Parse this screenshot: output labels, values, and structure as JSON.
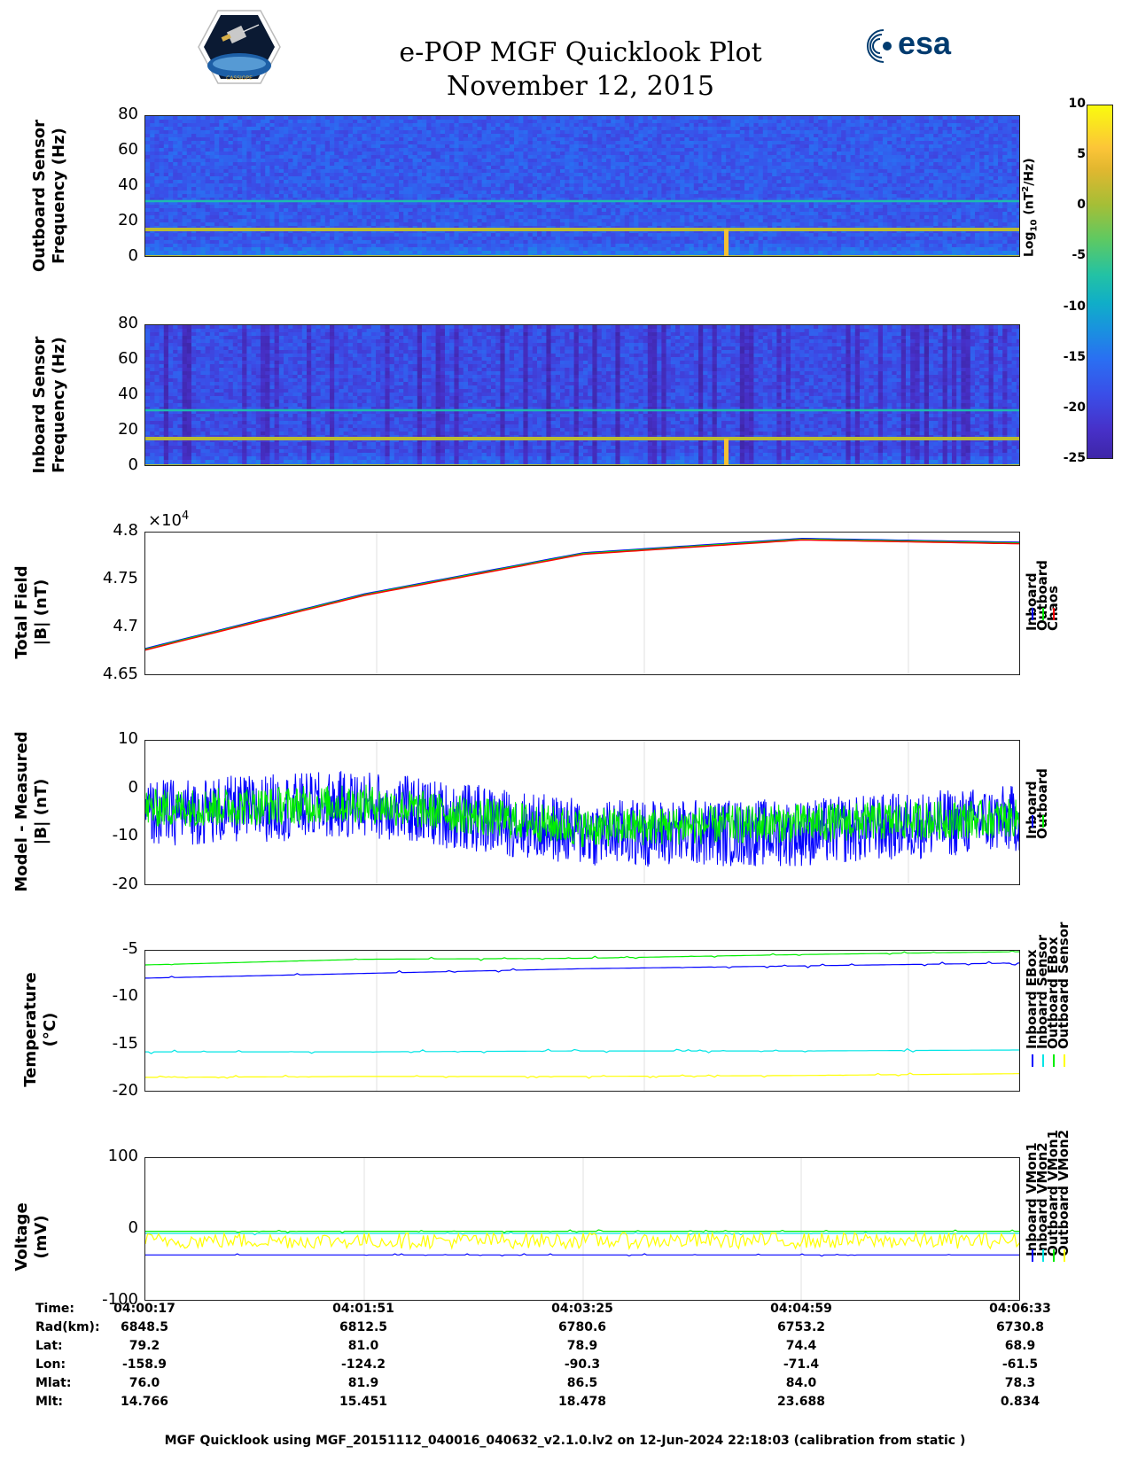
{
  "header": {
    "title": "e-POP MGF Quicklook Plot",
    "date": "November 12, 2015",
    "esa_logo_text": "esa",
    "mission_badge_text": "CASSIOPE"
  },
  "colors": {
    "blue": "#0000ff",
    "green": "#00ee00",
    "red": "#ff0000",
    "cyan": "#00e5e5",
    "yellow": "#ffff00"
  },
  "colorbar": {
    "label_main": "Log",
    "label_sub": "10",
    "label_rest": " (nT",
    "label_sup": "2",
    "label_end": "/Hz)",
    "ticks": [
      "10",
      "5",
      "0",
      "-5",
      "-10",
      "-15",
      "-20",
      "-25"
    ],
    "range": [
      -25,
      10
    ]
  },
  "panels": {
    "outboard": {
      "ylabel1": "Outboard Sensor",
      "ylabel2": "Frequency (Hz)",
      "ticks": [
        "80",
        "60",
        "40",
        "20",
        "0"
      ]
    },
    "inboard": {
      "ylabel1": "Inboard Sensor",
      "ylabel2": "Frequency (Hz)",
      "ticks": [
        "80",
        "60",
        "40",
        "20",
        "0"
      ]
    },
    "total_field": {
      "ylabel1": "Total Field",
      "ylabel2": "|B| (nT)",
      "exponent_base": "×10",
      "exponent": "4",
      "ticks": [
        "4.8",
        "4.75",
        "4.7",
        "4.65"
      ],
      "legend": [
        "Inboard",
        "Outboard",
        "Chaos"
      ]
    },
    "residual": {
      "ylabel1": "Model - Measured",
      "ylabel2": "|B| (nT)",
      "ticks": [
        "10",
        "0",
        "-10",
        "-20"
      ],
      "legend": [
        "Inboard",
        "Outboard"
      ]
    },
    "temperature": {
      "ylabel1": "Temperature",
      "ylabel2": "(°C)",
      "ticks": [
        "-5",
        "-10",
        "-15",
        "-20"
      ],
      "legend": [
        "Inboard EBox",
        "Inboard Sensor",
        "Outboard EBox",
        "Outboard Sensor"
      ]
    },
    "voltage": {
      "ylabel1": "Voltage",
      "ylabel2": "(mV)",
      "ticks": [
        "100",
        "0",
        "-100"
      ],
      "legend": [
        "Inboard VMon1",
        "Inboard VMon2",
        "Outboard VMon1",
        "Outboard VMon2"
      ]
    }
  },
  "table": {
    "labels": [
      "Time:",
      "Rad(km):",
      "Lat:",
      "Lon:",
      "Mlat:",
      "Mlt:"
    ],
    "columns": [
      [
        "04:00:17",
        "6848.5",
        "79.2",
        "-158.9",
        "76.0",
        "14.766"
      ],
      [
        "04:01:51",
        "6812.5",
        "81.0",
        "-124.2",
        "81.9",
        "15.451"
      ],
      [
        "04:03:25",
        "6780.6",
        "78.9",
        "-90.3",
        "86.5",
        "18.478"
      ],
      [
        "04:04:59",
        "6753.2",
        "74.4",
        "-71.4",
        "84.0",
        "23.688"
      ],
      [
        "04:06:33",
        "6730.8",
        "68.9",
        "-61.5",
        "78.3",
        "0.834"
      ]
    ]
  },
  "footer": "MGF Quicklook using MGF_20151112_040016_040632_v2.1.0.lv2 on 12-Jun-2024 22:18:03 (calibration from static )",
  "chart_data": [
    {
      "type": "heatmap",
      "title": "",
      "ylabel": "Outboard Sensor Frequency (Hz)",
      "ylim": [
        0,
        80
      ],
      "x_range": [
        "04:00:17",
        "04:06:33"
      ],
      "colorscale_range_log10": [
        -25,
        10
      ],
      "features": [
        {
          "frequency_hz": 0.5,
          "log10_power": 2
        },
        {
          "frequency_hz": 16,
          "log10_power": 2
        },
        {
          "frequency_hz": 32,
          "log10_power": -6
        }
      ],
      "background_log10_power": -16
    },
    {
      "type": "heatmap",
      "title": "",
      "ylabel": "Inboard Sensor Frequency (Hz)",
      "ylim": [
        0,
        80
      ],
      "x_range": [
        "04:00:17",
        "04:06:33"
      ],
      "colorscale_range_log10": [
        -25,
        10
      ],
      "features": [
        {
          "frequency_hz": 0.5,
          "log10_power": 2
        },
        {
          "frequency_hz": 16,
          "log10_power": 2
        },
        {
          "frequency_hz": 32,
          "log10_power": -6
        }
      ],
      "background_log10_power": -17
    },
    {
      "type": "line",
      "ylabel": "Total Field |B| (nT)",
      "ylim": [
        46500,
        48000
      ],
      "x": [
        "04:00:17",
        "04:01:51",
        "04:03:25",
        "04:04:59",
        "04:06:33"
      ],
      "series": [
        {
          "name": "Inboard",
          "values": [
            46780,
            47350,
            47780,
            47930,
            47890
          ]
        },
        {
          "name": "Outboard",
          "values": [
            46780,
            47350,
            47780,
            47930,
            47890
          ]
        },
        {
          "name": "Chaos",
          "values": [
            46780,
            47350,
            47780,
            47930,
            47890
          ]
        }
      ]
    },
    {
      "type": "line",
      "ylabel": "Model - Measured |B| (nT)",
      "ylim": [
        -20,
        10
      ],
      "x": [
        "04:00:17",
        "04:01:51",
        "04:03:25",
        "04:04:59",
        "04:06:33"
      ],
      "series": [
        {
          "name": "Inboard",
          "values": [
            -5,
            -3,
            -9,
            -9,
            -6
          ]
        },
        {
          "name": "Outboard",
          "values": [
            -4,
            -3,
            -8,
            -7,
            -6
          ]
        }
      ],
      "noise_amplitude": {
        "Inboard": 7,
        "Outboard": 4
      }
    },
    {
      "type": "line",
      "ylabel": "Temperature (°C)",
      "ylim": [
        -20,
        -5
      ],
      "x": [
        "04:00:17",
        "04:01:51",
        "04:03:25",
        "04:04:59",
        "04:06:33"
      ],
      "series": [
        {
          "name": "Inboard EBox",
          "values": [
            -7.9,
            -7.4,
            -6.9,
            -6.6,
            -6.3
          ]
        },
        {
          "name": "Inboard Sensor",
          "values": [
            -15.7,
            -15.7,
            -15.6,
            -15.6,
            -15.5
          ]
        },
        {
          "name": "Outboard EBox",
          "values": [
            -6.5,
            -5.9,
            -5.8,
            -5.4,
            -5.1
          ]
        },
        {
          "name": "Outboard Sensor",
          "values": [
            -18.4,
            -18.3,
            -18.3,
            -18.2,
            -18.0
          ]
        }
      ]
    },
    {
      "type": "line",
      "ylabel": "Voltage (mV)",
      "ylim": [
        -100,
        100
      ],
      "x": [
        "04:00:17",
        "04:01:51",
        "04:03:25",
        "04:04:59",
        "04:06:33"
      ],
      "series": [
        {
          "name": "Inboard VMon1",
          "values": [
            -35,
            -35,
            -35,
            -35,
            -35
          ]
        },
        {
          "name": "Inboard VMon2",
          "values": [
            -5,
            -5,
            -5,
            -5,
            -5
          ]
        },
        {
          "name": "Outboard VMon1",
          "values": [
            -2,
            -2,
            -2,
            -2,
            -2
          ]
        },
        {
          "name": "Outboard VMon2",
          "values": [
            -15,
            -15,
            -15,
            -15,
            -15
          ]
        }
      ]
    }
  ]
}
